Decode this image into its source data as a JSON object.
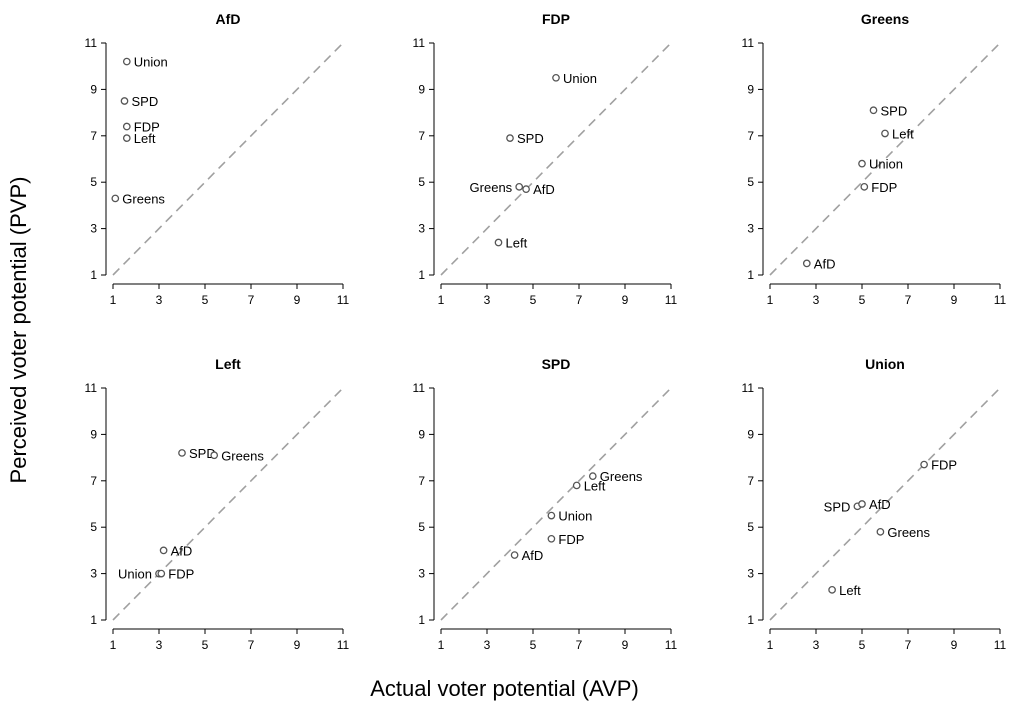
{
  "chart_data": {
    "type": "scatter",
    "xlabel": "Actual voter potential (AVP)",
    "ylabel": "Perceived voter potential (PVP)",
    "xlim": [
      1,
      11
    ],
    "ylim": [
      1,
      11
    ],
    "ticks": [
      1,
      3,
      5,
      7,
      9,
      11
    ],
    "reference_line": "diagonal y = x (dashed)",
    "marker": "open-circle",
    "panels": [
      {
        "title": "AfD",
        "points": [
          {
            "label": "Union",
            "x": 1.6,
            "y": 10.2
          },
          {
            "label": "SPD",
            "x": 1.5,
            "y": 8.5
          },
          {
            "label": "FDP",
            "x": 1.6,
            "y": 7.4
          },
          {
            "label": "Left",
            "x": 1.6,
            "y": 6.9
          },
          {
            "label": "Greens",
            "x": 1.1,
            "y": 4.3
          }
        ]
      },
      {
        "title": "FDP",
        "points": [
          {
            "label": "Union",
            "x": 6.0,
            "y": 9.5
          },
          {
            "label": "SPD",
            "x": 4.0,
            "y": 6.9
          },
          {
            "label": "Greens",
            "x": 4.4,
            "y": 4.8
          },
          {
            "label": "AfD",
            "x": 4.7,
            "y": 4.7
          },
          {
            "label": "Left",
            "x": 3.5,
            "y": 2.4
          }
        ]
      },
      {
        "title": "Greens",
        "points": [
          {
            "label": "SPD",
            "x": 5.5,
            "y": 8.1
          },
          {
            "label": "Left",
            "x": 6.0,
            "y": 7.1
          },
          {
            "label": "Union",
            "x": 5.0,
            "y": 5.8
          },
          {
            "label": "FDP",
            "x": 5.1,
            "y": 4.8
          },
          {
            "label": "AfD",
            "x": 2.6,
            "y": 1.5
          }
        ]
      },
      {
        "title": "Left",
        "points": [
          {
            "label": "SPD",
            "x": 4.0,
            "y": 8.2
          },
          {
            "label": "Greens",
            "x": 5.4,
            "y": 8.1
          },
          {
            "label": "AfD",
            "x": 3.2,
            "y": 4.0
          },
          {
            "label": "Union",
            "x": 3.0,
            "y": 3.0
          },
          {
            "label": "FDP",
            "x": 3.1,
            "y": 3.0
          }
        ]
      },
      {
        "title": "SPD",
        "points": [
          {
            "label": "Greens",
            "x": 7.6,
            "y": 7.2
          },
          {
            "label": "Left",
            "x": 6.9,
            "y": 6.8
          },
          {
            "label": "Union",
            "x": 5.8,
            "y": 5.5
          },
          {
            "label": "FDP",
            "x": 5.8,
            "y": 4.5
          },
          {
            "label": "AfD",
            "x": 4.2,
            "y": 3.8
          }
        ]
      },
      {
        "title": "Union",
        "points": [
          {
            "label": "FDP",
            "x": 7.7,
            "y": 7.7
          },
          {
            "label": "SPD",
            "x": 4.8,
            "y": 5.9
          },
          {
            "label": "AfD",
            "x": 5.0,
            "y": 6.0
          },
          {
            "label": "Greens",
            "x": 5.8,
            "y": 4.8
          },
          {
            "label": "Left",
            "x": 3.7,
            "y": 2.3
          }
        ]
      }
    ]
  }
}
